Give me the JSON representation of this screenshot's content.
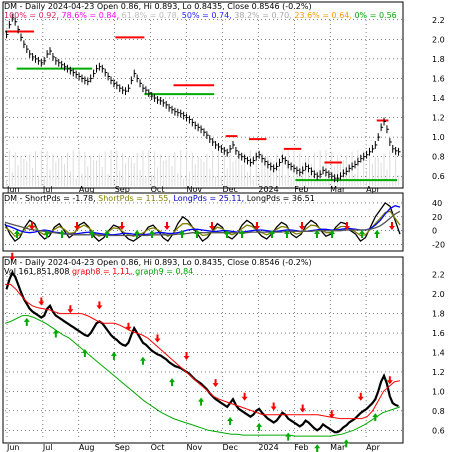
{
  "chart_data": [
    {
      "type": "line",
      "panel": "price",
      "header_line1": "DM - Daily 2024-04-23 Open 0.86, Hi 0.893, Lo 0.8435, Close 0.8546 (-0.2%)",
      "fib_labels": [
        {
          "text": "100% = 0.92,",
          "color": "#d81b60"
        },
        {
          "text": "78.6% = 0.84,",
          "color": "#ff00ff"
        },
        {
          "text": "61.8% = 0.78,",
          "color": "#bbbbbb"
        },
        {
          "text": "50% = 0.74,",
          "color": "#2020ff"
        },
        {
          "text": "38.2% = 0.70,",
          "color": "#aaaaaa"
        },
        {
          "text": "23.6% = 0.64,",
          "color": "#ff9900"
        },
        {
          "text": "0% = 0.56",
          "color": "#00aa00"
        }
      ],
      "ylim": [
        0.5,
        2.3
      ],
      "yticks": [
        "0.6",
        "0.8",
        "1.0",
        "1.2",
        "1.4",
        "1.6",
        "1.8",
        "2.0",
        "2.2"
      ],
      "months": [
        "Jun",
        "Jul",
        "Aug",
        "Sep",
        "Oct",
        "Nov",
        "Dec",
        "2024",
        "Feb",
        "Mar",
        "Apr"
      ],
      "close": [
        2.05,
        2.15,
        2.22,
        2.18,
        2.1,
        2.02,
        1.95,
        1.9,
        1.85,
        1.82,
        1.8,
        1.78,
        1.76,
        1.78,
        1.85,
        1.88,
        1.82,
        1.78,
        1.76,
        1.74,
        1.72,
        1.7,
        1.68,
        1.66,
        1.64,
        1.62,
        1.6,
        1.58,
        1.57,
        1.6,
        1.65,
        1.7,
        1.72,
        1.7,
        1.66,
        1.62,
        1.58,
        1.55,
        1.53,
        1.5,
        1.48,
        1.47,
        1.5,
        1.58,
        1.65,
        1.6,
        1.55,
        1.5,
        1.48,
        1.45,
        1.42,
        1.4,
        1.38,
        1.37,
        1.35,
        1.33,
        1.3,
        1.28,
        1.26,
        1.25,
        1.24,
        1.22,
        1.2,
        1.18,
        1.15,
        1.12,
        1.1,
        1.08,
        1.05,
        1.02,
        0.98,
        0.95,
        0.92,
        0.9,
        0.88,
        0.86,
        0.84,
        0.88,
        0.92,
        0.86,
        0.82,
        0.8,
        0.78,
        0.76,
        0.74,
        0.76,
        0.8,
        0.82,
        0.78,
        0.75,
        0.72,
        0.7,
        0.68,
        0.7,
        0.74,
        0.78,
        0.76,
        0.72,
        0.7,
        0.68,
        0.66,
        0.64,
        0.66,
        0.7,
        0.68,
        0.65,
        0.62,
        0.6,
        0.62,
        0.66,
        0.64,
        0.62,
        0.6,
        0.58,
        0.58,
        0.6,
        0.63,
        0.65,
        0.68,
        0.7,
        0.72,
        0.75,
        0.78,
        0.8,
        0.82,
        0.85,
        0.88,
        0.92,
        1.0,
        1.1,
        1.16,
        1.08,
        0.95,
        0.88,
        0.86,
        0.85
      ],
      "resistance": [
        {
          "from": 0,
          "to": 10,
          "y": 2.08,
          "color": "#ff0000"
        },
        {
          "from": 38,
          "to": 48,
          "y": 2.02,
          "color": "#ff0000"
        },
        {
          "from": 58,
          "to": 72,
          "y": 1.53,
          "color": "#ff0000"
        },
        {
          "from": 76,
          "to": 80,
          "y": 1.01,
          "color": "#ff0000"
        },
        {
          "from": 84,
          "to": 90,
          "y": 0.98,
          "color": "#ff0000"
        },
        {
          "from": 96,
          "to": 102,
          "y": 0.88,
          "color": "#ff0000"
        },
        {
          "from": 110,
          "to": 116,
          "y": 0.74,
          "color": "#ff0000"
        },
        {
          "from": 128,
          "to": 132,
          "y": 1.17,
          "color": "#ff0000"
        }
      ],
      "support": [
        {
          "from": 4,
          "to": 30,
          "y": 1.7,
          "color": "#00aa00"
        },
        {
          "from": 48,
          "to": 72,
          "y": 1.44,
          "color": "#00aa00"
        },
        {
          "from": 100,
          "to": 135,
          "y": 0.56,
          "color": "#00aa00"
        }
      ]
    },
    {
      "type": "line",
      "panel": "oscillator",
      "header_parts": [
        {
          "text": "DM - ShortPds = -1.78,",
          "color": "#000000"
        },
        {
          "text": "ShortPds = 11.55,",
          "color": "#808000"
        },
        {
          "text": "LongPds = 25.11,",
          "color": "#0000cc"
        },
        {
          "text": "LongPds = 36.51",
          "color": "#000000"
        }
      ],
      "ylim": [
        -25,
        50
      ],
      "yticks": [
        "-20",
        "0",
        "20",
        "40"
      ],
      "series": [
        {
          "color": "#000000",
          "values": [
            10,
            -5,
            -15,
            -10,
            5,
            15,
            10,
            -5,
            -12,
            -8,
            5,
            10,
            0,
            -10,
            -5,
            8,
            12,
            5,
            -8,
            -15,
            -10,
            0,
            8,
            5,
            -5,
            -12,
            -15,
            -10,
            -5,
            5,
            8,
            0,
            -10,
            -15,
            -5,
            10,
            20,
            15,
            5,
            -5,
            -15,
            -10,
            0,
            10,
            5,
            -8,
            -12,
            -5,
            8,
            15,
            10,
            0,
            -8,
            -12,
            -5,
            5,
            12,
            8,
            -5,
            -10,
            -5,
            8,
            15,
            10,
            0,
            -8,
            -5,
            5,
            12,
            10,
            0,
            -5,
            -15,
            -10,
            5,
            20,
            30,
            40,
            35,
            15,
            -5
          ]
        },
        {
          "color": "#808000",
          "values": [
            5,
            0,
            -8,
            -6,
            2,
            8,
            6,
            -2,
            -6,
            -4,
            2,
            6,
            2,
            -4,
            -3,
            4,
            8,
            4,
            -3,
            -8,
            -6,
            -1,
            4,
            3,
            -2,
            -6,
            -8,
            -6,
            -3,
            2,
            4,
            1,
            -4,
            -8,
            -4,
            4,
            10,
            10,
            5,
            -1,
            -7,
            -6,
            -1,
            5,
            3,
            -3,
            -6,
            -3,
            3,
            8,
            6,
            1,
            -3,
            -6,
            -3,
            2,
            6,
            5,
            -1,
            -5,
            -3,
            3,
            8,
            7,
            2,
            -3,
            -3,
            2,
            6,
            6,
            2,
            -2,
            -7,
            -6,
            2,
            10,
            18,
            26,
            28,
            18,
            8
          ]
        },
        {
          "color": "#0000ff",
          "values": [
            8,
            6,
            3,
            0,
            -2,
            -3,
            -2,
            0,
            1,
            0,
            -2,
            -3,
            -4,
            -5,
            -5,
            -4,
            -3,
            -2,
            -3,
            -4,
            -5,
            -6,
            -6,
            -5,
            -4,
            -4,
            -5,
            -6,
            -6,
            -5,
            -4,
            -3,
            -3,
            -4,
            -4,
            -3,
            -1,
            1,
            2,
            2,
            1,
            0,
            -1,
            -1,
            0,
            0,
            -1,
            -2,
            -2,
            -1,
            0,
            1,
            1,
            0,
            -1,
            -1,
            0,
            1,
            1,
            0,
            -1,
            -1,
            0,
            1,
            2,
            2,
            1,
            1,
            2,
            3,
            3,
            2,
            1,
            1,
            3,
            8,
            15,
            24,
            32,
            36,
            34
          ]
        },
        {
          "color": "#555555",
          "values": [
            12,
            10,
            8,
            6,
            4,
            2,
            1,
            0,
            -1,
            -2,
            -3,
            -4,
            -5,
            -5,
            -6,
            -6,
            -6,
            -6,
            -6,
            -6,
            -7,
            -7,
            -7,
            -7,
            -7,
            -7,
            -7,
            -7,
            -7,
            -7,
            -6,
            -6,
            -6,
            -6,
            -6,
            -5,
            -5,
            -4,
            -3,
            -3,
            -3,
            -3,
            -3,
            -3,
            -3,
            -3,
            -3,
            -3,
            -3,
            -3,
            -2,
            -2,
            -2,
            -2,
            -2,
            -2,
            -2,
            -1,
            -1,
            -1,
            -1,
            -1,
            -1,
            0,
            0,
            0,
            0,
            0,
            0,
            1,
            1,
            1,
            1,
            1,
            2,
            4,
            7,
            12,
            18,
            24,
            28
          ]
        }
      ]
    },
    {
      "type": "line",
      "panel": "price2",
      "header_parts": [
        {
          "text": "DM - Daily 2024-04-23 Open 0.86, Hi 0.893, Lo 0.8435, Close 0.8546 (-0.2%)",
          "color": "#000000"
        },
        {
          "text": "Vol 161,851,808",
          "color": "#000000"
        },
        {
          "text": "graph8 = 1.11,",
          "color": "#ff0000"
        },
        {
          "text": "graph9 = 0.84",
          "color": "#00aa00"
        }
      ],
      "ylim": [
        0.5,
        2.3
      ],
      "yticks": [
        "0.6",
        "0.8",
        "1.0",
        "1.2",
        "1.4",
        "1.6",
        "1.8",
        "2.0",
        "2.2"
      ],
      "months": [
        "Jun",
        "Jul",
        "Aug",
        "Sep",
        "Oct",
        "Nov",
        "Dec",
        "2024",
        "Feb",
        "Mar",
        "Apr"
      ],
      "graph8": [
        2.1,
        2.1,
        2.05,
        1.98,
        1.92,
        1.88,
        1.86,
        1.85,
        1.84,
        1.82,
        1.8,
        1.8,
        1.8,
        1.8,
        1.8,
        1.78,
        1.75,
        1.72,
        1.7,
        1.7,
        1.7,
        1.68,
        1.65,
        1.62,
        1.6,
        1.58,
        1.55,
        1.5,
        1.45,
        1.4,
        1.35,
        1.3,
        1.25,
        1.2,
        1.15,
        1.1,
        1.05,
        1.0,
        0.95,
        0.92,
        0.9,
        0.88,
        0.86,
        0.84,
        0.82,
        0.8,
        0.78,
        0.76,
        0.76,
        0.76,
        0.76,
        0.76,
        0.76,
        0.76,
        0.76,
        0.76,
        0.76,
        0.76,
        0.75,
        0.74,
        0.73,
        0.72,
        0.72,
        0.72,
        0.72,
        0.72,
        0.74,
        0.8,
        0.9,
        1.0,
        1.05,
        1.1,
        1.11
      ],
      "graph9": [
        1.7,
        1.72,
        1.75,
        1.78,
        1.78,
        1.76,
        1.73,
        1.7,
        1.66,
        1.62,
        1.58,
        1.55,
        1.5,
        1.45,
        1.4,
        1.35,
        1.3,
        1.25,
        1.2,
        1.15,
        1.1,
        1.05,
        1.0,
        0.95,
        0.9,
        0.86,
        0.82,
        0.78,
        0.75,
        0.72,
        0.7,
        0.68,
        0.66,
        0.64,
        0.62,
        0.6,
        0.59,
        0.58,
        0.57,
        0.56,
        0.56,
        0.55,
        0.55,
        0.55,
        0.55,
        0.55,
        0.55,
        0.55,
        0.55,
        0.55,
        0.54,
        0.54,
        0.54,
        0.54,
        0.54,
        0.54,
        0.54,
        0.55,
        0.56,
        0.58,
        0.6,
        0.63,
        0.66,
        0.7,
        0.74,
        0.78,
        0.8,
        0.82,
        0.84
      ]
    }
  ]
}
